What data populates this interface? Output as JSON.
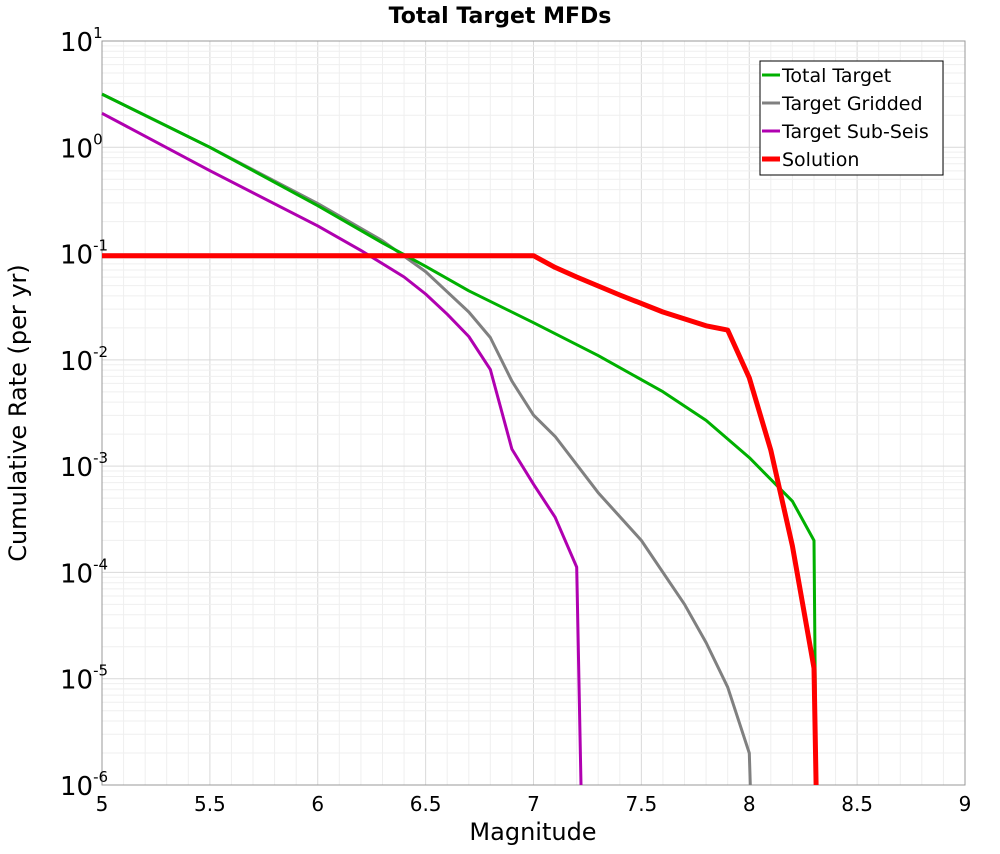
{
  "chart_data": {
    "type": "line",
    "title": "Total Target MFDs",
    "xlabel": "Magnitude",
    "ylabel": "Cumulative Rate (per yr)",
    "xlim": [
      5,
      9
    ],
    "ylim_log10": [
      -6,
      1
    ],
    "y_scale": "log",
    "grid": true,
    "legend_position": "top-right",
    "x_ticks": [
      "5",
      "5.5",
      "6",
      "6.5",
      "7",
      "7.5",
      "8",
      "8.5",
      "9"
    ],
    "y_ticks": [
      {
        "base": "10",
        "exp": "1"
      },
      {
        "base": "10",
        "exp": "0"
      },
      {
        "base": "10",
        "exp": "-1"
      },
      {
        "base": "10",
        "exp": "-2"
      },
      {
        "base": "10",
        "exp": "-3"
      },
      {
        "base": "10",
        "exp": "-4"
      },
      {
        "base": "10",
        "exp": "-5"
      },
      {
        "base": "10",
        "exp": "-6"
      }
    ],
    "series": [
      {
        "name": "Total Target",
        "color": "#00b000",
        "x": [
          5.0,
          5.5,
          6.0,
          6.3,
          6.5,
          6.7,
          7.0,
          7.3,
          7.6,
          7.8,
          8.0,
          8.2,
          8.3,
          8.31
        ],
        "log10_y": [
          0.5,
          0.0,
          -0.55,
          -0.9,
          -1.12,
          -1.35,
          -1.65,
          -1.96,
          -2.3,
          -2.57,
          -2.92,
          -3.33,
          -3.7,
          -6.0
        ]
      },
      {
        "name": "Target Gridded",
        "color": "#808080",
        "x": [
          5.0,
          5.5,
          6.0,
          6.3,
          6.5,
          6.6,
          6.7,
          6.8,
          6.9,
          7.0,
          7.1,
          7.3,
          7.5,
          7.7,
          7.8,
          7.9,
          8.0,
          8.005
        ],
        "log10_y": [
          0.5,
          0.0,
          -0.53,
          -0.88,
          -1.17,
          -1.36,
          -1.55,
          -1.79,
          -2.2,
          -2.52,
          -2.72,
          -3.25,
          -3.7,
          -4.3,
          -4.66,
          -5.08,
          -5.7,
          -6.0
        ]
      },
      {
        "name": "Target Sub-Seis",
        "color": "#b000b0",
        "x": [
          5.0,
          5.5,
          6.0,
          6.2,
          6.4,
          6.5,
          6.6,
          6.7,
          6.8,
          6.9,
          7.0,
          7.1,
          7.2,
          7.22
        ],
        "log10_y": [
          0.32,
          -0.22,
          -0.74,
          -0.97,
          -1.22,
          -1.38,
          -1.57,
          -1.78,
          -2.09,
          -2.84,
          -3.17,
          -3.48,
          -3.95,
          -6.0
        ]
      },
      {
        "name": "Solution",
        "color": "#ff0000",
        "x": [
          5.0,
          6.0,
          7.0,
          7.1,
          7.2,
          7.4,
          7.6,
          7.8,
          7.9,
          8.0,
          8.1,
          8.2,
          8.3,
          8.31
        ],
        "log10_y": [
          -1.02,
          -1.02,
          -1.02,
          -1.13,
          -1.22,
          -1.39,
          -1.55,
          -1.68,
          -1.72,
          -2.17,
          -2.85,
          -3.75,
          -4.9,
          -6.0
        ]
      }
    ]
  }
}
